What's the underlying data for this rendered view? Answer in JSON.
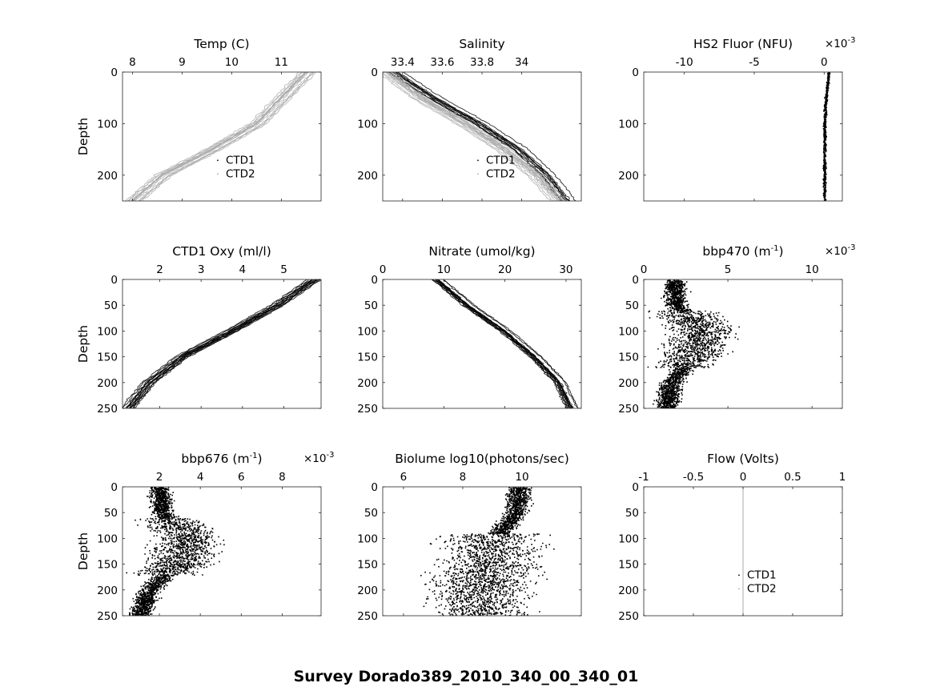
{
  "figure": {
    "title": "Survey Dorado389_2010_340_00_340_01"
  },
  "chart_data": [
    {
      "type": "line",
      "title": "Temp (C)",
      "xlabel": "",
      "ylabel": "Depth",
      "xlim": [
        7.8,
        11.8
      ],
      "ylim": [
        0,
        250
      ],
      "xticks": [
        8,
        9,
        10,
        11
      ],
      "xtick_labels": [
        "8",
        "9",
        "10",
        "11"
      ],
      "yticks": [
        0,
        100,
        200
      ],
      "ytick_labels": [
        "0",
        "100",
        "200"
      ],
      "legend": [
        "CTD1",
        "CTD2"
      ],
      "series": [
        {
          "name": "CTD2",
          "color": "#aaaaaa",
          "depth": [
            0,
            50,
            100,
            150,
            200,
            250
          ],
          "values": [
            11.5,
            11.0,
            10.5,
            9.6,
            8.6,
            8.0
          ]
        }
      ]
    },
    {
      "type": "line",
      "title": "Salinity",
      "xlabel": "",
      "ylabel": "",
      "xlim": [
        33.3,
        34.3
      ],
      "ylim": [
        0,
        250
      ],
      "xticks": [
        33.4,
        33.6,
        33.8,
        34
      ],
      "xtick_labels": [
        "33.4",
        "33.6",
        "33.8",
        "34"
      ],
      "yticks": [
        0,
        100,
        200
      ],
      "ytick_labels": [
        "0",
        "100",
        "200"
      ],
      "legend": [
        "CTD1",
        "CTD2"
      ],
      "series": [
        {
          "name": "CTD1",
          "color": "#000000",
          "depth": [
            0,
            50,
            100,
            150,
            200,
            250
          ],
          "values": [
            33.35,
            33.55,
            33.78,
            33.98,
            34.12,
            34.22
          ]
        },
        {
          "name": "CTD2",
          "color": "#aaaaaa",
          "depth": [
            0,
            50,
            100,
            150,
            200,
            250
          ],
          "values": [
            33.33,
            33.5,
            33.72,
            33.92,
            34.08,
            34.2
          ]
        }
      ]
    },
    {
      "type": "scatter",
      "title": "HS2 Fluor (NFU)",
      "multiplier": "×10",
      "exponent": "-3",
      "xlabel": "",
      "ylabel": "",
      "xlim": [
        -12.9,
        1.3
      ],
      "ylim": [
        0,
        250
      ],
      "xticks": [
        -10,
        -5,
        0
      ],
      "xtick_labels": [
        "-10",
        "-5",
        "0"
      ],
      "yticks": [
        0,
        100,
        200
      ],
      "ytick_labels": [
        "0",
        "100",
        "200"
      ],
      "series": [
        {
          "name": "CTD1",
          "color": "#000000",
          "depth": [
            0,
            50,
            100,
            150,
            200,
            250
          ],
          "values": [
            0.3,
            0.1,
            0.0,
            0.0,
            0.0,
            0.0
          ]
        }
      ]
    },
    {
      "type": "line",
      "title": "CTD1 Oxy (ml/l)",
      "xlabel": "",
      "ylabel": "Depth",
      "xlim": [
        1.1,
        5.9
      ],
      "ylim": [
        0,
        250
      ],
      "xticks": [
        2,
        3,
        4,
        5
      ],
      "xtick_labels": [
        "2",
        "3",
        "4",
        "5"
      ],
      "yticks": [
        0,
        50,
        100,
        150,
        200,
        250
      ],
      "ytick_labels": [
        "0",
        "50",
        "100",
        "150",
        "200",
        "250"
      ],
      "series": [
        {
          "name": "CTD1",
          "color": "#000000",
          "depth": [
            0,
            50,
            100,
            150,
            200,
            250
          ],
          "values": [
            5.8,
            4.9,
            3.8,
            2.6,
            1.8,
            1.3
          ]
        }
      ]
    },
    {
      "type": "line",
      "title": "Nitrate (umol/kg)",
      "xlabel": "",
      "ylabel": "",
      "xlim": [
        0,
        32.5
      ],
      "ylim": [
        0,
        250
      ],
      "xticks": [
        0,
        10,
        20,
        30
      ],
      "xtick_labels": [
        "0",
        "10",
        "20",
        "30"
      ],
      "yticks": [
        0,
        50,
        100,
        150,
        200,
        250
      ],
      "ytick_labels": [
        "0",
        "50",
        "100",
        "150",
        "200",
        "250"
      ],
      "series": [
        {
          "name": "CTD1",
          "color": "#000000",
          "depth": [
            0,
            50,
            100,
            150,
            200,
            250
          ],
          "values": [
            9,
            14,
            20,
            25,
            29,
            31
          ]
        }
      ]
    },
    {
      "type": "scatter",
      "title": "bbp470 (m",
      "title_sup": "-1",
      "title_end": ")",
      "multiplier": "×10",
      "exponent": "-3",
      "xlabel": "",
      "ylabel": "",
      "xlim": [
        0,
        11.8
      ],
      "ylim": [
        0,
        250
      ],
      "xticks": [
        0,
        5,
        10
      ],
      "xtick_labels": [
        "0",
        "5",
        "10"
      ],
      "yticks": [
        0,
        50,
        100,
        150,
        200,
        250
      ],
      "ytick_labels": [
        "0",
        "50",
        "100",
        "150",
        "200",
        "250"
      ],
      "series": [
        {
          "name": "CTD1",
          "color": "#000000",
          "depth": [
            0,
            50,
            100,
            150,
            200,
            250
          ],
          "values": [
            1.8,
            1.9,
            3.5,
            2.8,
            1.6,
            1.3
          ]
        }
      ]
    },
    {
      "type": "scatter",
      "title": "bbp676 (m",
      "title_sup": "-1",
      "title_end": ")",
      "multiplier": "×10",
      "exponent": "-3",
      "xlabel": "",
      "ylabel": "Depth",
      "xlim": [
        0.2,
        9.9
      ],
      "ylim": [
        0,
        250
      ],
      "xticks": [
        2,
        4,
        6,
        8
      ],
      "xtick_labels": [
        "2",
        "4",
        "6",
        "8"
      ],
      "yticks": [
        0,
        50,
        100,
        150,
        200,
        250
      ],
      "ytick_labels": [
        "0",
        "50",
        "100",
        "150",
        "200",
        "250"
      ],
      "series": [
        {
          "name": "CTD1",
          "color": "#000000",
          "depth": [
            0,
            50,
            100,
            150,
            200,
            250
          ],
          "values": [
            2.0,
            2.1,
            3.5,
            2.8,
            1.5,
            1.0
          ]
        }
      ]
    },
    {
      "type": "scatter",
      "title": "Biolume log10(photons/sec)",
      "xlabel": "",
      "ylabel": "",
      "xlim": [
        5.3,
        12.0
      ],
      "ylim": [
        0,
        250
      ],
      "xticks": [
        6,
        8,
        10
      ],
      "xtick_labels": [
        "6",
        "8",
        "10"
      ],
      "yticks": [
        0,
        50,
        100,
        150,
        200,
        250
      ],
      "ytick_labels": [
        "0",
        "50",
        "100",
        "150",
        "200",
        "250"
      ],
      "series": [
        {
          "name": "CTD1",
          "color": "#000000",
          "depth": [
            0,
            50,
            100,
            150,
            200,
            250
          ],
          "values": [
            9.9,
            9.8,
            9.0,
            8.8,
            8.6,
            8.5
          ]
        }
      ]
    },
    {
      "type": "line",
      "title": "Flow (Volts)",
      "xlabel": "",
      "ylabel": "",
      "xlim": [
        -1,
        1
      ],
      "ylim": [
        0,
        250
      ],
      "xticks": [
        -1,
        -0.5,
        0,
        0.5,
        1
      ],
      "xtick_labels": [
        "-1",
        "-0.5",
        "0",
        "0.5",
        "1"
      ],
      "yticks": [
        0,
        50,
        100,
        150,
        200,
        250
      ],
      "ytick_labels": [
        "0",
        "50",
        "100",
        "150",
        "200",
        "250"
      ],
      "legend": [
        "CTD1",
        "CTD2"
      ],
      "series": [
        {
          "name": "CTD2",
          "color": "#aaaaaa",
          "depth": [
            0,
            250
          ],
          "values": [
            0,
            0
          ]
        }
      ]
    }
  ]
}
